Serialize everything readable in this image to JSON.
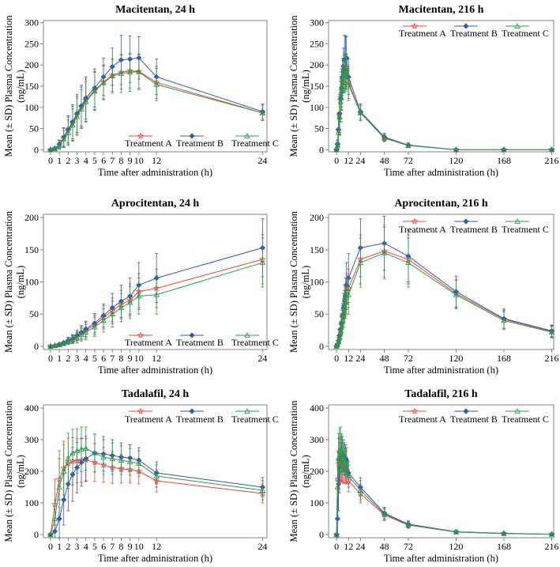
{
  "figure": {
    "x_axis_label": "Time after administration (h)",
    "y_axis_label": "Mean (± SD) Plasma Concentration (ng/mL)",
    "treatments": [
      "Treatment A",
      "Treatment B",
      "Treatment C"
    ],
    "colors": {
      "treatment_a": "#e8443a",
      "treatment_b": "#3a54b0",
      "treatment_c": "#2e9a4a",
      "frame": "#808080",
      "text": "#000000"
    },
    "markers": {
      "treatment_a": "star",
      "treatment_b": "diamond",
      "treatment_c": "triangle"
    }
  },
  "chart_data": [
    {
      "type": "line",
      "title": "Macitentan, 24 h",
      "xlabel": "Time after administration (h)",
      "ylabel": "Mean (± SD) Plasma Concentration (ng/mL)",
      "x_ticks": [
        0,
        1,
        2,
        3,
        4,
        5,
        6,
        7,
        8,
        9,
        10,
        12,
        24
      ],
      "xlim": [
        -0.8,
        24.5
      ],
      "y_ticks": [
        0,
        50,
        100,
        150,
        200,
        250,
        300
      ],
      "ylim": [
        -5,
        305
      ],
      "legend": "bottom-right",
      "x": [
        0,
        0.5,
        1,
        1.5,
        2,
        2.5,
        3,
        3.5,
        4,
        5,
        6,
        7,
        8,
        9,
        10,
        12,
        24
      ],
      "series": [
        {
          "name": "Treatment A",
          "values": [
            0,
            3,
            12,
            28,
            45,
            62,
            82,
            100,
            117,
            140,
            160,
            176,
            183,
            186,
            185,
            159,
            87
          ],
          "sd": [
            0,
            2,
            10,
            22,
            32,
            40,
            45,
            48,
            50,
            45,
            40,
            38,
            40,
            40,
            40,
            38,
            18
          ]
        },
        {
          "name": "Treatment B",
          "values": [
            0,
            3,
            13,
            30,
            48,
            66,
            86,
            104,
            122,
            146,
            172,
            196,
            212,
            214,
            217,
            172,
            90
          ],
          "sd": [
            0,
            2,
            10,
            22,
            32,
            40,
            45,
            48,
            50,
            45,
            44,
            44,
            58,
            55,
            50,
            42,
            18
          ]
        },
        {
          "name": "Treatment C",
          "values": [
            0,
            2,
            10,
            25,
            40,
            58,
            78,
            96,
            113,
            138,
            158,
            174,
            180,
            183,
            184,
            154,
            87
          ],
          "sd": [
            0,
            2,
            9,
            20,
            30,
            38,
            44,
            46,
            48,
            45,
            40,
            40,
            45,
            45,
            42,
            38,
            18
          ]
        }
      ]
    },
    {
      "type": "line",
      "title": "Macitentan, 216 h",
      "xlabel": "Time after administration (h)",
      "ylabel": "Mean (± SD) Plasma Concentration (ng/mL)",
      "x_ticks": [
        0,
        12,
        24,
        48,
        72,
        120,
        168,
        216
      ],
      "xlim": [
        -8,
        218
      ],
      "y_ticks": [
        0,
        50,
        100,
        150,
        200,
        250,
        300
      ],
      "ylim": [
        -5,
        305
      ],
      "legend": "top-right",
      "x": [
        0,
        1,
        2,
        3,
        4,
        5,
        6,
        7,
        8,
        9,
        10,
        12,
        24,
        48,
        72,
        120,
        168,
        216
      ],
      "series": [
        {
          "name": "Treatment A",
          "values": [
            0,
            12,
            45,
            82,
            117,
            140,
            160,
            176,
            183,
            186,
            185,
            159,
            87,
            27,
            10,
            0,
            0,
            0
          ],
          "sd": [
            0,
            10,
            32,
            45,
            50,
            45,
            40,
            38,
            40,
            40,
            40,
            38,
            18,
            8,
            5,
            0,
            0,
            0
          ]
        },
        {
          "name": "Treatment B",
          "values": [
            0,
            13,
            48,
            86,
            122,
            146,
            172,
            196,
            212,
            214,
            217,
            172,
            90,
            30,
            11,
            0,
            0,
            0
          ],
          "sd": [
            0,
            10,
            32,
            45,
            50,
            45,
            44,
            44,
            58,
            55,
            50,
            42,
            18,
            9,
            5,
            0,
            0,
            0
          ]
        },
        {
          "name": "Treatment C",
          "values": [
            0,
            10,
            40,
            78,
            113,
            138,
            158,
            174,
            180,
            183,
            184,
            154,
            87,
            28,
            10,
            0,
            0,
            0
          ],
          "sd": [
            0,
            9,
            30,
            44,
            48,
            45,
            40,
            40,
            45,
            45,
            42,
            38,
            18,
            8,
            5,
            0,
            0,
            0
          ]
        }
      ]
    },
    {
      "type": "line",
      "title": "Aprocitentan, 24 h",
      "xlabel": "Time after administration (h)",
      "ylabel": "Mean (± SD) Plasma Concentration (ng/mL)",
      "x_ticks": [
        0,
        1,
        2,
        3,
        4,
        5,
        6,
        7,
        8,
        9,
        10,
        12,
        24
      ],
      "xlim": [
        -0.8,
        24.5
      ],
      "y_ticks": [
        0,
        50,
        100,
        150,
        200
      ],
      "ylim": [
        -5,
        205
      ],
      "legend": "bottom-right",
      "x": [
        0,
        0.5,
        1,
        1.5,
        2,
        2.5,
        3,
        3.5,
        4,
        5,
        6,
        7,
        8,
        9,
        10,
        12,
        24
      ],
      "series": [
        {
          "name": "Treatment A",
          "values": [
            0,
            1,
            3,
            5,
            8,
            11,
            15,
            20,
            25,
            33,
            45,
            55,
            65,
            72,
            85,
            90,
            135
          ],
          "sd": [
            0,
            1,
            2,
            3,
            5,
            6,
            8,
            10,
            12,
            15,
            18,
            20,
            22,
            25,
            28,
            30,
            38
          ]
        },
        {
          "name": "Treatment B",
          "values": [
            0,
            1,
            3,
            5,
            9,
            12,
            17,
            22,
            27,
            36,
            48,
            60,
            70,
            78,
            95,
            106,
            153
          ],
          "sd": [
            0,
            1,
            2,
            3,
            5,
            6,
            8,
            10,
            12,
            15,
            18,
            22,
            25,
            28,
            35,
            38,
            45
          ]
        },
        {
          "name": "Treatment C",
          "values": [
            0,
            1,
            2,
            4,
            7,
            10,
            13,
            18,
            22,
            30,
            40,
            50,
            60,
            68,
            78,
            80,
            130
          ],
          "sd": [
            0,
            1,
            2,
            3,
            4,
            6,
            8,
            10,
            12,
            15,
            18,
            20,
            22,
            25,
            28,
            30,
            38
          ]
        }
      ]
    },
    {
      "type": "line",
      "title": "Aprocitentan, 216 h",
      "xlabel": "Time after administration (h)",
      "ylabel": "Mean (± SD) Plasma Concentration (ng/mL)",
      "x_ticks": [
        0,
        12,
        24,
        48,
        72,
        120,
        168,
        216
      ],
      "xlim": [
        -8,
        218
      ],
      "y_ticks": [
        0,
        50,
        100,
        150,
        200
      ],
      "ylim": [
        -5,
        205
      ],
      "legend": "top-right",
      "x": [
        0,
        1,
        2,
        3,
        4,
        5,
        6,
        7,
        8,
        9,
        10,
        12,
        24,
        48,
        72,
        120,
        168,
        216
      ],
      "series": [
        {
          "name": "Treatment A",
          "values": [
            0,
            3,
            8,
            15,
            25,
            33,
            45,
            55,
            65,
            72,
            85,
            90,
            135,
            148,
            135,
            82,
            42,
            23
          ],
          "sd": [
            0,
            2,
            5,
            8,
            12,
            15,
            18,
            20,
            22,
            25,
            28,
            30,
            38,
            40,
            38,
            22,
            14,
            9
          ]
        },
        {
          "name": "Treatment B",
          "values": [
            0,
            3,
            9,
            17,
            27,
            36,
            48,
            60,
            70,
            78,
            95,
            106,
            153,
            160,
            140,
            85,
            43,
            24
          ],
          "sd": [
            0,
            2,
            5,
            8,
            12,
            15,
            18,
            22,
            25,
            28,
            35,
            38,
            45,
            42,
            40,
            24,
            15,
            9
          ]
        },
        {
          "name": "Treatment C",
          "values": [
            0,
            2,
            7,
            13,
            22,
            30,
            40,
            50,
            60,
            68,
            78,
            80,
            130,
            145,
            130,
            80,
            40,
            22
          ],
          "sd": [
            0,
            2,
            4,
            8,
            12,
            15,
            18,
            20,
            22,
            25,
            28,
            30,
            38,
            40,
            38,
            22,
            14,
            9
          ]
        }
      ]
    },
    {
      "type": "line",
      "title": "Tadalafil, 24 h",
      "xlabel": "Time after administration (h)",
      "ylabel": "Mean (± SD) Plasma Concentration (ng/mL)",
      "x_ticks": [
        0,
        1,
        2,
        3,
        4,
        5,
        6,
        7,
        8,
        9,
        10,
        12,
        24
      ],
      "xlim": [
        -0.8,
        24.5
      ],
      "y_ticks": [
        0,
        100,
        200,
        300,
        400
      ],
      "ylim": [
        -10,
        410
      ],
      "legend": "top-right",
      "x": [
        0,
        0.5,
        1,
        1.5,
        2,
        2.5,
        3,
        3.5,
        4,
        5,
        6,
        7,
        8,
        9,
        10,
        12,
        24
      ],
      "series": [
        {
          "name": "Treatment A",
          "values": [
            0,
            95,
            175,
            210,
            225,
            232,
            233,
            235,
            236,
            228,
            220,
            212,
            208,
            205,
            200,
            170,
            130
          ],
          "sd": [
            0,
            80,
            90,
            85,
            80,
            75,
            70,
            70,
            68,
            60,
            55,
            50,
            45,
            42,
            40,
            35,
            30
          ]
        },
        {
          "name": "Treatment B",
          "values": [
            0,
            10,
            50,
            110,
            160,
            190,
            212,
            228,
            240,
            258,
            255,
            250,
            245,
            242,
            235,
            195,
            150
          ],
          "sd": [
            0,
            20,
            60,
            80,
            85,
            85,
            80,
            75,
            70,
            60,
            55,
            50,
            45,
            42,
            40,
            35,
            30
          ]
        },
        {
          "name": "Treatment C",
          "values": [
            0,
            50,
            150,
            200,
            240,
            258,
            265,
            270,
            272,
            258,
            245,
            240,
            235,
            230,
            225,
            185,
            140
          ],
          "sd": [
            0,
            60,
            90,
            85,
            80,
            75,
            70,
            70,
            68,
            60,
            55,
            50,
            45,
            42,
            40,
            35,
            30
          ]
        }
      ]
    },
    {
      "type": "line",
      "title": "Tadalafil, 216 h",
      "xlabel": "Time after administration (h)",
      "ylabel": "Mean (± SD) Plasma Concentration (ng/mL)",
      "x_ticks": [
        0,
        12,
        24,
        48,
        72,
        120,
        168,
        216
      ],
      "xlim": [
        -8,
        218
      ],
      "y_ticks": [
        0,
        100,
        200,
        300,
        400
      ],
      "ylim": [
        -10,
        410
      ],
      "legend": "top-right",
      "x": [
        0,
        1,
        2,
        3,
        4,
        5,
        6,
        7,
        8,
        9,
        10,
        12,
        24,
        48,
        72,
        120,
        168,
        216
      ],
      "series": [
        {
          "name": "Treatment A",
          "values": [
            0,
            175,
            225,
            233,
            236,
            228,
            220,
            212,
            208,
            205,
            200,
            170,
            130,
            62,
            30,
            8,
            3,
            1
          ],
          "sd": [
            0,
            90,
            80,
            70,
            68,
            60,
            55,
            50,
            45,
            42,
            40,
            35,
            30,
            18,
            10,
            4,
            2,
            1
          ]
        },
        {
          "name": "Treatment B",
          "values": [
            0,
            50,
            160,
            212,
            240,
            258,
            255,
            250,
            245,
            242,
            235,
            195,
            150,
            68,
            33,
            9,
            4,
            1
          ],
          "sd": [
            0,
            60,
            85,
            80,
            70,
            60,
            55,
            50,
            45,
            42,
            40,
            35,
            30,
            18,
            10,
            4,
            2,
            1
          ]
        },
        {
          "name": "Treatment C",
          "values": [
            0,
            150,
            240,
            265,
            272,
            258,
            245,
            240,
            235,
            230,
            225,
            185,
            140,
            65,
            31,
            8,
            3,
            1
          ],
          "sd": [
            0,
            90,
            80,
            70,
            68,
            60,
            55,
            50,
            45,
            42,
            40,
            35,
            30,
            18,
            10,
            4,
            2,
            1
          ]
        }
      ]
    }
  ]
}
